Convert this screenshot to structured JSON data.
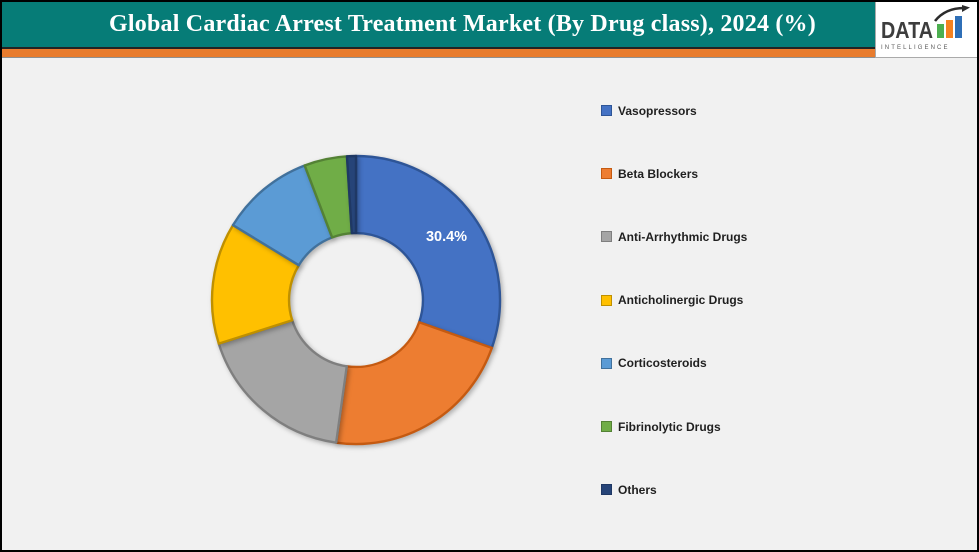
{
  "header": {
    "title": "Global Cardiac Arrest Treatment Market (By Drug class), 2024 (%)"
  },
  "logo": {
    "text": "DATA",
    "subtext": "INTELLIGENCE",
    "bar_colors": [
      "#4caf50",
      "#f58220",
      "#2f6fb7"
    ],
    "text_color": "#3d3d3d",
    "arrow_color": "#2b2b2b"
  },
  "theme": {
    "header_teal": "#067c77",
    "stripe_orange": "#e87c2e",
    "body_background": "#f1f1f1",
    "title_color": "#ffffff",
    "legend_text_color": "#1f1f1f"
  },
  "chart_data": {
    "type": "pie",
    "subtype": "donut",
    "title": "Global Cardiac Arrest Treatment Market (By Drug class), 2024 (%)",
    "unit": "%",
    "start_angle_deg": 0,
    "direction": "clockwise",
    "inner_radius_ratio": 0.465,
    "legend_position": "right",
    "displayed_data_label": "30.4%",
    "slices": [
      {
        "name": "Vasopressors",
        "value": 30.4,
        "label": "30.4%",
        "color": "#4472c4",
        "border": "#2e5597"
      },
      {
        "name": "Beta Blockers",
        "value": 21.8,
        "label": "",
        "color": "#ed7d31",
        "border": "#c55a11"
      },
      {
        "name": "Anti-Arrhythmic Drugs",
        "value": 17.9,
        "label": "",
        "color": "#a5a5a5",
        "border": "#7f7f7f"
      },
      {
        "name": "Anticholinergic Drugs",
        "value": 13.6,
        "label": "",
        "color": "#ffc000",
        "border": "#bf9000"
      },
      {
        "name": "Corticosteroids",
        "value": 10.5,
        "label": "",
        "color": "#5b9bd5",
        "border": "#41719c"
      },
      {
        "name": "Fibrinolytic Drugs",
        "value": 4.8,
        "label": "",
        "color": "#70ad47",
        "border": "#548235"
      },
      {
        "name": "Others",
        "value": 1.0,
        "label": "",
        "color": "#264478",
        "border": "#1f3864"
      }
    ]
  }
}
